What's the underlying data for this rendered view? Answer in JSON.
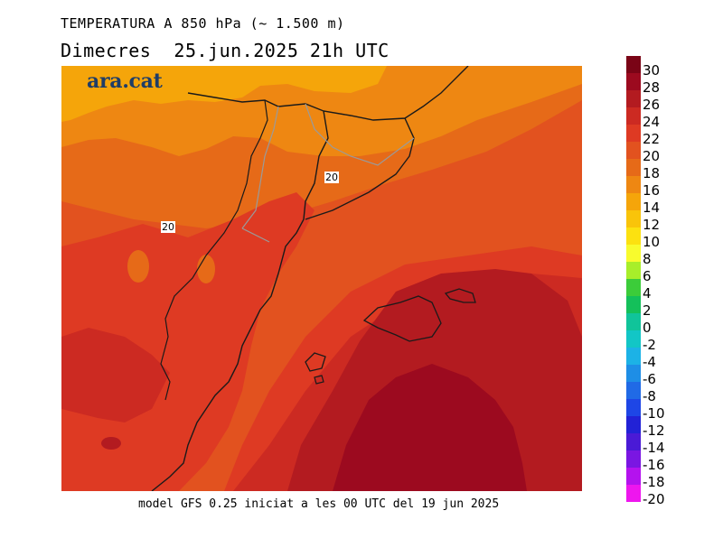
{
  "header": {
    "title": "TEMPERATURA A 850 hPa (~ 1.500 m)",
    "subtitle": "Dimecres  25.jun.2025 21h UTC"
  },
  "map": {
    "brand": "ara.cat",
    "contour_labels": [
      "20",
      "20"
    ]
  },
  "footer": {
    "text": "model GFS 0.25 iniciat a les 00 UTC del 19 jun 2025"
  },
  "legend": {
    "labels": [
      "30",
      "28",
      "26",
      "24",
      "22",
      "20",
      "18",
      "16",
      "14",
      "12",
      "10",
      "8",
      "6",
      "4",
      "2",
      "0",
      "-2",
      "-4",
      "-6",
      "-8",
      "-10",
      "-12",
      "-14",
      "-16",
      "-18",
      "-20"
    ],
    "colors": [
      "#7a0416",
      "#9c0a1f",
      "#b31b20",
      "#cc2a22",
      "#de3a23",
      "#e2521f",
      "#e66a18",
      "#ee8712",
      "#f5a50a",
      "#f9c40a",
      "#fce110",
      "#f8fb2d",
      "#a8ee2a",
      "#3ccc3a",
      "#14c05a",
      "#10c49a",
      "#12c6c6",
      "#1cb2e6",
      "#1e8ee6",
      "#206ae6",
      "#1e46e6",
      "#2222d6",
      "#4a1ad6",
      "#7a16e2",
      "#b412ee",
      "#ee16ee"
    ]
  },
  "colors": {
    "t14": "#f5a50a",
    "t16": "#ee8712",
    "t18": "#e66a18",
    "t20": "#e2521f",
    "t22": "#de3a23",
    "t24": "#cc2a22",
    "t26": "#b31b20",
    "t28": "#9c0a1f",
    "coast": "#1a1a1a",
    "border": "#9a9a9a"
  }
}
